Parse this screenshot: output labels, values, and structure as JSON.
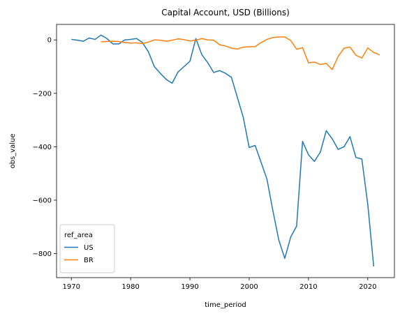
{
  "chart_data": {
    "type": "line",
    "title": "Capital Account, USD (Billions)",
    "xlabel": "time_period",
    "ylabel": "obs_value",
    "xlim": [
      1967.5,
      2024.5
    ],
    "ylim": [
      -890,
      58
    ],
    "xticks": [
      1970,
      1980,
      1990,
      2000,
      2010,
      2020
    ],
    "yticks": [
      -800,
      -600,
      -400,
      -200,
      0
    ],
    "grid": false,
    "legend": {
      "title": "ref_area",
      "placement": "lower-left"
    },
    "series": [
      {
        "name": "US",
        "color": "#1f77b4",
        "x": [
          1970,
          1971,
          1972,
          1973,
          1974,
          1975,
          1976,
          1977,
          1978,
          1979,
          1980,
          1981,
          1982,
          1983,
          1984,
          1985,
          1986,
          1987,
          1988,
          1989,
          1990,
          1991,
          1992,
          1993,
          1994,
          1995,
          1996,
          1997,
          1998,
          1999,
          2000,
          2001,
          2002,
          2003,
          2004,
          2005,
          2006,
          2007,
          2008,
          2009,
          2010,
          2011,
          2012,
          2013,
          2014,
          2015,
          2016,
          2017,
          2018,
          2019,
          2020,
          2021
        ],
        "y": [
          2,
          -1,
          -5,
          7,
          2,
          18,
          5,
          -15,
          -15,
          0,
          2,
          5,
          -10,
          -45,
          -100,
          -125,
          -148,
          -162,
          -120,
          -100,
          -80,
          5,
          -55,
          -85,
          -122,
          -115,
          -125,
          -140,
          -215,
          -290,
          -403,
          -395,
          -458,
          -522,
          -640,
          -750,
          -818,
          -738,
          -697,
          -380,
          -430,
          -455,
          -420,
          -340,
          -370,
          -410,
          -400,
          -362,
          -440,
          -446,
          -615,
          -848
        ]
      },
      {
        "name": "BR",
        "color": "#ff7f0e",
        "x": [
          1975,
          1976,
          1977,
          1978,
          1979,
          1980,
          1981,
          1982,
          1983,
          1984,
          1985,
          1986,
          1987,
          1988,
          1989,
          1990,
          1991,
          1992,
          1993,
          1994,
          1995,
          1996,
          1997,
          1998,
          1999,
          2000,
          2001,
          2002,
          2003,
          2004,
          2005,
          2006,
          2007,
          2008,
          2009,
          2010,
          2011,
          2012,
          2013,
          2014,
          2015,
          2016,
          2017,
          2018,
          2019,
          2020,
          2021,
          2022
        ],
        "y": [
          -7,
          -6,
          -5,
          -6,
          -10,
          -12,
          -11,
          -14,
          -8,
          0,
          -1,
          -5,
          -1,
          4,
          1,
          -4,
          -1,
          5,
          0,
          -1,
          -18,
          -23,
          -31,
          -34,
          -27,
          -26,
          -25,
          -10,
          2,
          9,
          11,
          11,
          -2,
          -35,
          -29,
          -86,
          -83,
          -92,
          -88,
          -111,
          -62,
          -31,
          -27,
          -57,
          -68,
          -30,
          -47,
          -56
        ]
      }
    ]
  }
}
